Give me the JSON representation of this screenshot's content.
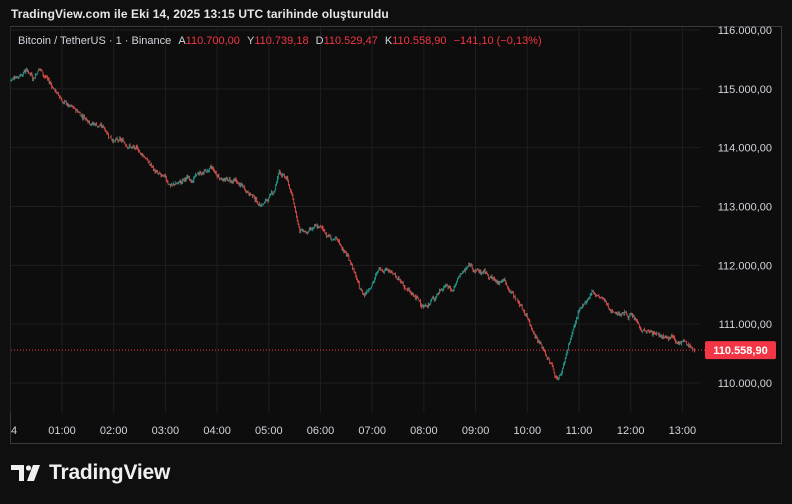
{
  "header": {
    "title": "TradingView.com ile Eki 14, 2025 13:15 UTC tarihinde oluşturuldu"
  },
  "legend": {
    "symbol": "Bitcoin / TetherUS · 1 · Binance",
    "open_label": "A",
    "open": "110.700,00",
    "high_label": "Y",
    "high": "110.739,18",
    "low_label": "D",
    "low": "110.529,47",
    "close_label": "K",
    "close": "110.558,90",
    "change": "−141,10 (−0,13%)"
  },
  "branding": {
    "logo_text": "TradingView"
  },
  "colors": {
    "up": "#26a69a",
    "down": "#ef5350",
    "price_label_bg": "#f23645",
    "grid": "#1e1e1e",
    "axis_text": "#d1d4dc"
  },
  "chart_data": {
    "type": "candlestick",
    "title": "",
    "xlabel": "",
    "ylabel": "",
    "ylim": [
      109950,
      116000
    ],
    "y_ticks": [
      {
        "value": 116000,
        "label": "116.000,00"
      },
      {
        "value": 115000,
        "label": "115.000,00"
      },
      {
        "value": 114000,
        "label": "114.000,00"
      },
      {
        "value": 113000,
        "label": "113.000,00"
      },
      {
        "value": 112000,
        "label": "112.000,00"
      },
      {
        "value": 111000,
        "label": "111.000,00"
      },
      {
        "value": 110000,
        "label": "110.000,00"
      }
    ],
    "x_ticks": [
      "4",
      "01:00",
      "02:00",
      "03:00",
      "04:00",
      "05:00",
      "06:00",
      "07:00",
      "08:00",
      "09:00",
      "10:00",
      "11:00",
      "12:00",
      "13:00"
    ],
    "x_range_hours": [
      0.0,
      13.25
    ],
    "last_price": 110558.9,
    "last_price_label": "110.558,90",
    "series": [
      {
        "values": [
          [
            0.0,
            115150
          ],
          [
            0.17,
            115250
          ],
          [
            0.3,
            115350
          ],
          [
            0.45,
            115220
          ],
          [
            0.55,
            115380
          ],
          [
            0.7,
            115200
          ],
          [
            0.85,
            115000
          ],
          [
            1.0,
            114800
          ],
          [
            1.2,
            114650
          ],
          [
            1.4,
            114550
          ],
          [
            1.6,
            114450
          ],
          [
            1.8,
            114350
          ],
          [
            1.95,
            114200
          ],
          [
            2.1,
            114100
          ],
          [
            2.3,
            114050
          ],
          [
            2.45,
            113950
          ],
          [
            2.6,
            113850
          ],
          [
            2.75,
            113650
          ],
          [
            2.9,
            113500
          ],
          [
            3.1,
            113350
          ],
          [
            3.25,
            113400
          ],
          [
            3.4,
            113450
          ],
          [
            3.55,
            113500
          ],
          [
            3.75,
            113600
          ],
          [
            3.9,
            113620
          ],
          [
            4.0,
            113500
          ],
          [
            4.2,
            113450
          ],
          [
            4.35,
            113400
          ],
          [
            4.5,
            113300
          ],
          [
            4.65,
            113250
          ],
          [
            4.8,
            113050
          ],
          [
            4.95,
            113100
          ],
          [
            5.1,
            113250
          ],
          [
            5.2,
            113600
          ],
          [
            5.35,
            113450
          ],
          [
            5.5,
            113000
          ],
          [
            5.6,
            112600
          ],
          [
            5.75,
            112550
          ],
          [
            6.0,
            112620
          ],
          [
            6.15,
            112500
          ],
          [
            6.3,
            112400
          ],
          [
            6.45,
            112250
          ],
          [
            6.6,
            112050
          ],
          [
            6.75,
            111600
          ],
          [
            6.85,
            111500
          ],
          [
            7.0,
            111750
          ],
          [
            7.15,
            111950
          ],
          [
            7.3,
            112000
          ],
          [
            7.45,
            111800
          ],
          [
            7.6,
            111650
          ],
          [
            7.8,
            111450
          ],
          [
            8.0,
            111300
          ],
          [
            8.2,
            111450
          ],
          [
            8.4,
            111700
          ],
          [
            8.55,
            111600
          ],
          [
            8.7,
            111850
          ],
          [
            8.9,
            112000
          ],
          [
            9.05,
            111900
          ],
          [
            9.2,
            111850
          ],
          [
            9.4,
            111700
          ],
          [
            9.55,
            111750
          ],
          [
            9.7,
            111550
          ],
          [
            9.85,
            111350
          ],
          [
            10.0,
            111150
          ],
          [
            10.15,
            110850
          ],
          [
            10.3,
            110600
          ],
          [
            10.45,
            110350
          ],
          [
            10.55,
            110100
          ],
          [
            10.65,
            110150
          ],
          [
            10.75,
            110500
          ],
          [
            10.9,
            110950
          ],
          [
            11.1,
            111350
          ],
          [
            11.25,
            111550
          ],
          [
            11.45,
            111400
          ],
          [
            11.6,
            111250
          ],
          [
            11.8,
            111200
          ],
          [
            12.0,
            111150
          ],
          [
            12.2,
            110950
          ],
          [
            12.4,
            110850
          ],
          [
            12.6,
            110800
          ],
          [
            12.8,
            110850
          ],
          [
            13.0,
            110750
          ],
          [
            13.15,
            110620
          ],
          [
            13.25,
            110559
          ]
        ]
      }
    ]
  }
}
